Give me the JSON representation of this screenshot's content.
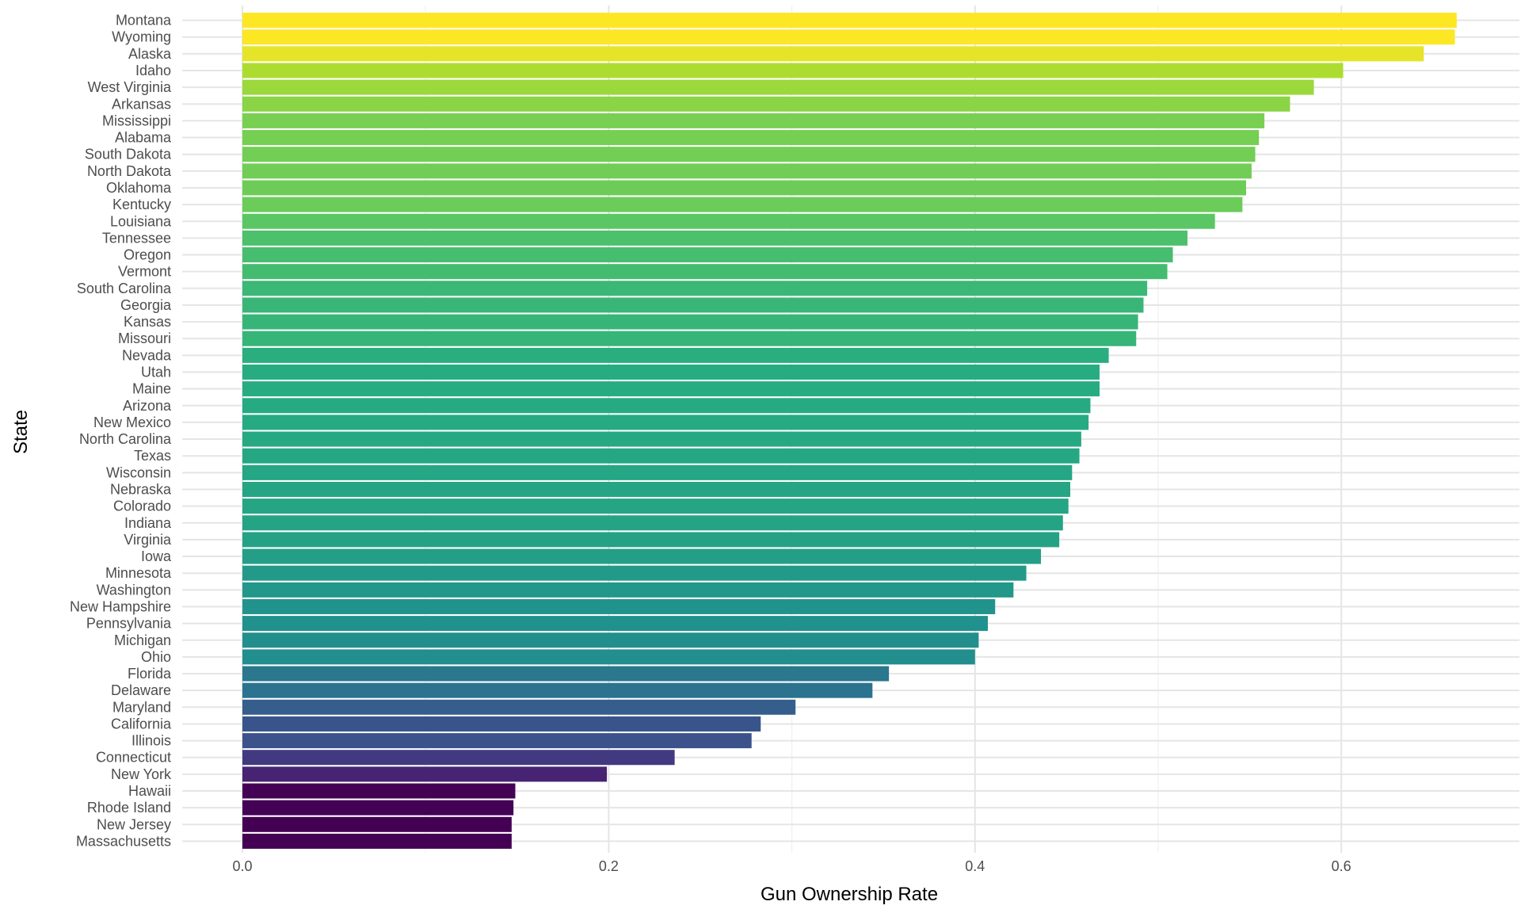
{
  "chart_data": {
    "type": "bar",
    "orientation": "horizontal",
    "xlabel": "Gun Ownership Rate",
    "ylabel": "State",
    "xlim": [
      0,
      0.7
    ],
    "x_ticks": [
      0.0,
      0.2,
      0.4,
      0.6
    ],
    "x_tick_labels": [
      "0.0",
      "0.2",
      "0.4",
      "0.6"
    ],
    "grid": true,
    "legend": "none",
    "colormap": "viridis",
    "categories": [
      "Montana",
      "Wyoming",
      "Alaska",
      "Idaho",
      "West Virginia",
      "Arkansas",
      "Mississippi",
      "Alabama",
      "South Dakota",
      "North Dakota",
      "Oklahoma",
      "Kentucky",
      "Louisiana",
      "Tennessee",
      "Oregon",
      "Vermont",
      "South Carolina",
      "Georgia",
      "Kansas",
      "Missouri",
      "Nevada",
      "Utah",
      "Maine",
      "Arizona",
      "New Mexico",
      "North Carolina",
      "Texas",
      "Wisconsin",
      "Nebraska",
      "Colorado",
      "Indiana",
      "Virginia",
      "Iowa",
      "Minnesota",
      "Washington",
      "New Hampshire",
      "Pennsylvania",
      "Michigan",
      "Ohio",
      "Florida",
      "Delaware",
      "Maryland",
      "California",
      "Illinois",
      "Connecticut",
      "New York",
      "Hawaii",
      "Rhode Island",
      "New Jersey",
      "Massachusetts"
    ],
    "values": [
      0.663,
      0.662,
      0.645,
      0.601,
      0.585,
      0.572,
      0.558,
      0.555,
      0.553,
      0.551,
      0.548,
      0.546,
      0.531,
      0.516,
      0.508,
      0.505,
      0.494,
      0.492,
      0.489,
      0.488,
      0.473,
      0.468,
      0.468,
      0.463,
      0.462,
      0.458,
      0.457,
      0.453,
      0.452,
      0.451,
      0.448,
      0.446,
      0.436,
      0.428,
      0.421,
      0.411,
      0.407,
      0.402,
      0.4,
      0.353,
      0.344,
      0.302,
      0.283,
      0.278,
      0.236,
      0.199,
      0.149,
      0.148,
      0.147,
      0.147
    ]
  }
}
